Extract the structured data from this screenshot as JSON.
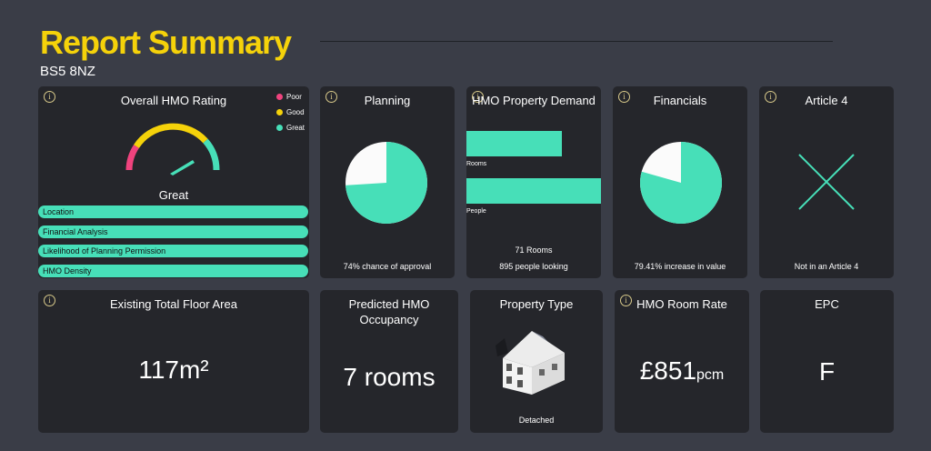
{
  "header": {
    "title": "Report Summary",
    "postcode": "BS5 8NZ"
  },
  "colors": {
    "accent": "#f5d20a",
    "poor": "#f0437e",
    "good": "#f5d20a",
    "great": "#47dfb8",
    "card": "#25262b",
    "background": "#3a3d47"
  },
  "rating": {
    "title": "Overall HMO Rating",
    "legend": [
      "Poor",
      "Good",
      "Great"
    ],
    "value": "Great",
    "factors": [
      "Location",
      "Financial Analysis",
      "Likelihood of Planning Permission",
      "HMO Density"
    ]
  },
  "planning": {
    "title": "Planning",
    "caption": "74% chance of approval",
    "chance_pct": 74
  },
  "demand": {
    "title": "HMO Property Demand",
    "rooms_label": "Rooms",
    "people_label": "People",
    "rooms_caption": "71 Rooms",
    "people_caption": "895 people looking",
    "rooms": 71,
    "people": 895
  },
  "financials": {
    "title": "Financials",
    "caption": "79.41% increase in value",
    "increase_pct": 79.41
  },
  "article4": {
    "title": "Article 4",
    "caption": "Not in an Article 4"
  },
  "floor_area": {
    "title": "Existing Total Floor Area",
    "value": "117m²"
  },
  "occupancy": {
    "title": "Predicted HMO Occupancy",
    "value": "7 rooms"
  },
  "property_type": {
    "title": "Property Type",
    "caption": "Detached"
  },
  "room_rate": {
    "title": "HMO Room Rate",
    "amount": "£851",
    "unit": "pcm"
  },
  "epc": {
    "title": "EPC",
    "value": "F"
  },
  "icons": {
    "info": "info-icon",
    "article4": "cross-icon",
    "house": "house-icon"
  },
  "info_glyph": "i"
}
